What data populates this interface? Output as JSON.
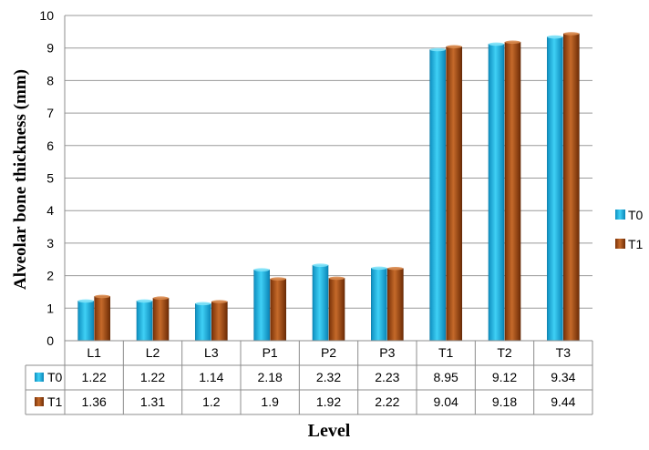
{
  "chart_data": {
    "type": "bar",
    "ylabel": "Alveolar bone thickness (mm)",
    "xlabel": "Level",
    "categories": [
      "L1",
      "L2",
      "L3",
      "P1",
      "P2",
      "P3",
      "T1",
      "T2",
      "T3"
    ],
    "ylim": [
      0,
      10
    ],
    "yticks": [
      0,
      1,
      2,
      3,
      4,
      5,
      6,
      7,
      8,
      9,
      10
    ],
    "grid": true,
    "legend_position": "right",
    "data_table": true,
    "series": [
      {
        "name": "T0",
        "color": "#1eb4e6",
        "values": [
          1.22,
          1.22,
          1.14,
          2.18,
          2.32,
          2.23,
          8.95,
          9.12,
          9.34
        ],
        "labels": [
          "1.22",
          "1.22",
          "1.14",
          "2.18",
          "2.32",
          "2.23",
          "8.95",
          "9.12",
          "9.34"
        ]
      },
      {
        "name": "T1",
        "color": "#9c4a15",
        "values": [
          1.36,
          1.31,
          1.2,
          1.9,
          1.92,
          2.22,
          9.04,
          9.18,
          9.44
        ],
        "labels": [
          "1.36",
          "1.31",
          "1.2",
          "1.9",
          "1.92",
          "2.22",
          "9.04",
          "9.18",
          "9.44"
        ]
      }
    ]
  }
}
